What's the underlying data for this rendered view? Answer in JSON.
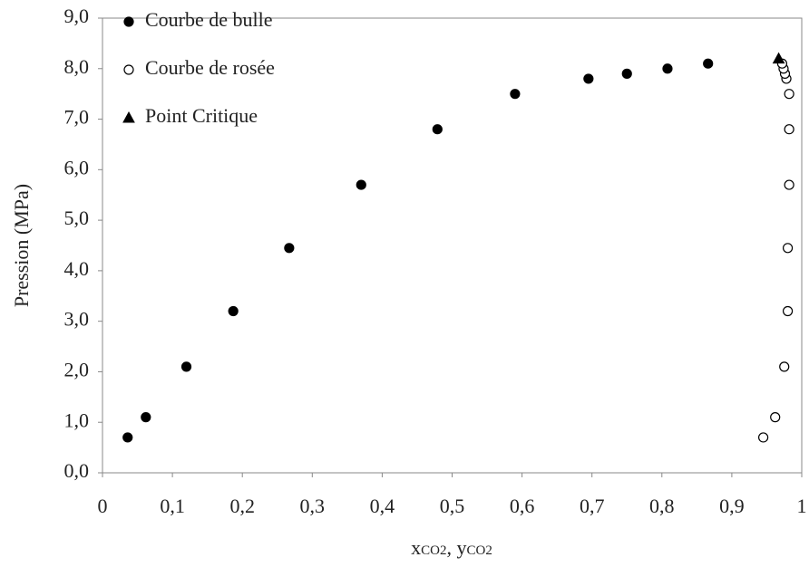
{
  "chart_data": {
    "type": "scatter",
    "ylabel": "Pression (MPa)",
    "xlabel": [
      "x",
      "CO2",
      ", y",
      "CO2"
    ],
    "xlim": [
      0,
      1
    ],
    "xticks": [
      0,
      {
        "value": 0.1,
        "label": "0,1"
      },
      {
        "value": 0.2,
        "label": "0,2"
      },
      {
        "value": 0.3,
        "label": "0,3"
      },
      {
        "value": 0.4,
        "label": "0,4"
      },
      {
        "value": 0.5,
        "label": "0,5"
      },
      {
        "value": 0.6,
        "label": "0,6"
      },
      {
        "value": 0.7,
        "label": "0,7"
      },
      {
        "value": 0.8,
        "label": "0,8"
      },
      {
        "value": 0.9,
        "label": "0,9"
      },
      1
    ],
    "ylim": [
      0,
      9
    ],
    "yticks": [
      {
        "value": 0,
        "label": "0,0"
      },
      {
        "value": 1,
        "label": "1,0"
      },
      {
        "value": 2,
        "label": "2,0"
      },
      {
        "value": 3,
        "label": "3,0"
      },
      {
        "value": 4,
        "label": "4,0"
      },
      {
        "value": 5,
        "label": "5,0"
      },
      {
        "value": 6,
        "label": "6,0"
      },
      {
        "value": 7,
        "label": "7,0"
      },
      {
        "value": 8,
        "label": "8,0"
      },
      {
        "value": 9,
        "label": "9,0"
      }
    ],
    "grid": false,
    "legend": "upper left",
    "series": [
      {
        "name": "Courbe de bulle",
        "color": "#000000",
        "marker": "circle",
        "filled": true,
        "x": [
          0.036,
          0.062,
          0.12,
          0.187,
          0.267,
          0.37,
          0.479,
          0.59,
          0.695,
          0.75,
          0.808,
          0.866
        ],
        "values": [
          0.7,
          1.1,
          2.1,
          3.2,
          4.45,
          5.7,
          6.8,
          7.5,
          7.8,
          7.9,
          8.0,
          8.1
        ]
      },
      {
        "name": "Courbe de rosée",
        "color": "#000000",
        "marker": "circle",
        "filled": false,
        "x": [
          0.945,
          0.962,
          0.975,
          0.98,
          0.98,
          0.982,
          0.982,
          0.982,
          0.978,
          0.976,
          0.974,
          0.972
        ],
        "values": [
          0.7,
          1.1,
          2.1,
          3.2,
          4.45,
          5.7,
          6.8,
          7.5,
          7.8,
          7.9,
          8.0,
          8.1
        ]
      },
      {
        "name": "Point Critique",
        "color": "#000000",
        "marker": "triangle",
        "filled": true,
        "x": [
          0.967
        ],
        "values": [
          8.2
        ]
      }
    ]
  }
}
